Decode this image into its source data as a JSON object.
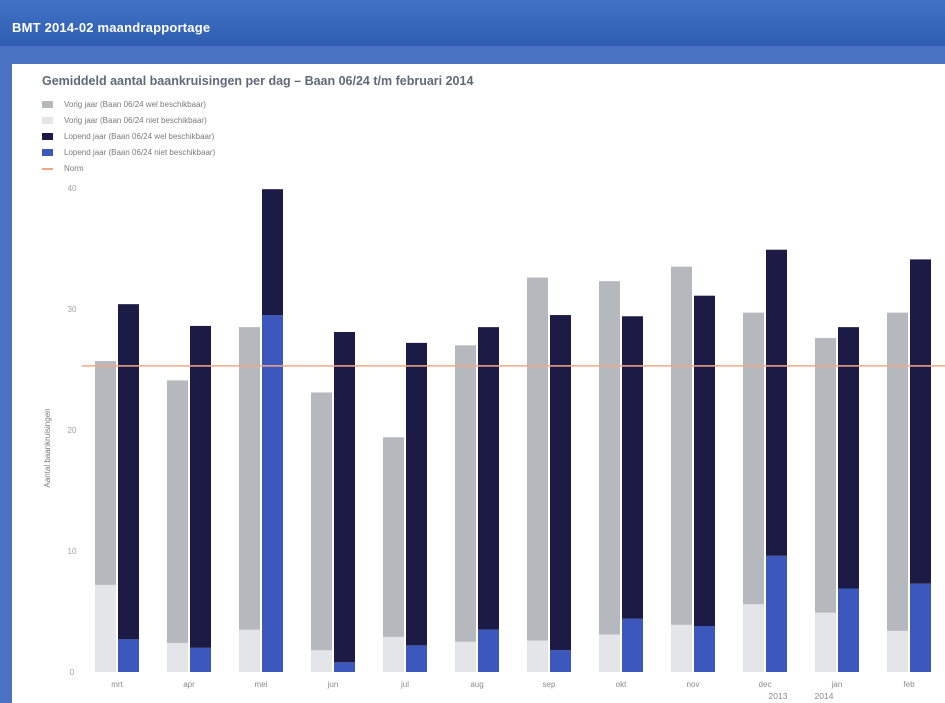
{
  "window": {
    "title": "BMT 2014-02 maandrapportage"
  },
  "colors": {
    "header_blue": "#3a6cc0",
    "prev_with": "#b5b8bd",
    "prev_without": "#e3e5e8",
    "curr_with": "#1c1b45",
    "curr_without": "#3c58bd",
    "norm": "#f0a889"
  },
  "chart_data": {
    "type": "bar",
    "title": "Gemiddeld aantal baankruisingen per dag  –  Baan 06/24 t/m februari 2014",
    "ylabel": "Aantal baankruisingen",
    "xlabel": "",
    "ylim": [
      0,
      40
    ],
    "yticks": [
      "0",
      "10",
      "20",
      "30",
      "40"
    ],
    "grid": false,
    "legend_position": "top-left",
    "categories": [
      "mrt",
      "apr",
      "mei",
      "jun",
      "jul",
      "aug",
      "sep",
      "okt",
      "nov",
      "dec",
      "jan",
      "feb"
    ],
    "year_labels": [
      "2013",
      "2014"
    ],
    "series": [
      {
        "name": "Vorig jaar (Baan 06/24 wel beschikbaar)",
        "stack": "vorig",
        "values": [
          18.5,
          21.7,
          25.0,
          21.3,
          16.5,
          24.5,
          30.0,
          29.2,
          29.6,
          24.1,
          22.7,
          26.3
        ]
      },
      {
        "name": "Vorig jaar (Baan 06/24 niet beschikbaar)",
        "stack": "vorig",
        "values": [
          7.2,
          2.4,
          3.5,
          1.8,
          2.9,
          2.5,
          2.6,
          3.1,
          3.9,
          5.6,
          4.9,
          3.4
        ]
      },
      {
        "name": "Lopend jaar (Baan 06/24 wel beschikbaar)",
        "stack": "lopend",
        "values": [
          27.7,
          26.6,
          10.4,
          27.3,
          25.0,
          25.0,
          27.7,
          25.0,
          27.3,
          25.3,
          21.6,
          26.8
        ]
      },
      {
        "name": "Lopend jaar (Baan 06/24 niet beschikbaar)",
        "stack": "lopend",
        "values": [
          2.7,
          2.0,
          29.5,
          0.8,
          2.2,
          3.5,
          1.8,
          4.4,
          3.8,
          9.6,
          6.9,
          7.3
        ]
      }
    ],
    "norm": {
      "name": "Norm",
      "value": 25.3
    }
  }
}
